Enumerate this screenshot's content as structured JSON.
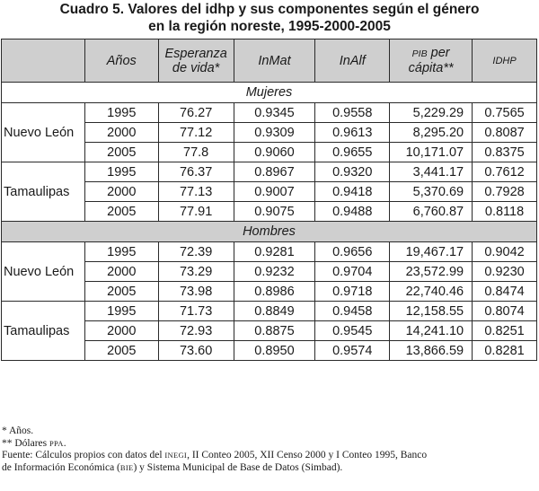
{
  "title": {
    "line1": "Cuadro 5. Valores del idhp y sus componentes según el género",
    "line2": "en la región noreste, 1995-2000-2005"
  },
  "headers": {
    "anios": "Años",
    "esperanza_1": "Esperanza",
    "esperanza_2": "de vida*",
    "inmat": "InMat",
    "inalf": "InAlf",
    "pib_1": "PIB",
    "pib_1b": "per",
    "pib_2": "cápita**",
    "idhp": "IDHP"
  },
  "sections": {
    "mujeres": "Mujeres",
    "hombres": "Hombres"
  },
  "mujeres": {
    "nuevo_leon": {
      "state": "Nuevo León",
      "rows": [
        {
          "year": "1995",
          "esperanza": "76.27",
          "inmat": "0.9345",
          "inalf": "0.9558",
          "pib": "5,229.29",
          "idhp": "0.7565"
        },
        {
          "year": "2000",
          "esperanza": "77.12",
          "inmat": "0.9309",
          "inalf": "0.9613",
          "pib": "8,295.20",
          "idhp": "0.8087"
        },
        {
          "year": "2005",
          "esperanza": "77.8",
          "inmat": "0.9060",
          "inalf": "0.9655",
          "pib": "10,171.07",
          "idhp": "0.8375"
        }
      ]
    },
    "tamaulipas": {
      "state": "Tamaulipas",
      "rows": [
        {
          "year": "1995",
          "esperanza": "76.37",
          "inmat": "0.8967",
          "inalf": "0.9320",
          "pib": "3,441.17",
          "idhp": "0.7612"
        },
        {
          "year": "2000",
          "esperanza": "77.13",
          "inmat": "0.9007",
          "inalf": "0.9418",
          "pib": "5,370.69",
          "idhp": "0.7928"
        },
        {
          "year": "2005",
          "esperanza": "77.91",
          "inmat": "0.9075",
          "inalf": "0.9488",
          "pib": "6,760.87",
          "idhp": "0.8118"
        }
      ]
    }
  },
  "hombres": {
    "nuevo_leon": {
      "state": "Nuevo León",
      "rows": [
        {
          "year": "1995",
          "esperanza": "72.39",
          "inmat": "0.9281",
          "inalf": "0.9656",
          "pib": "19,467.17",
          "idhp": "0.9042"
        },
        {
          "year": "2000",
          "esperanza": "73.29",
          "inmat": "0.9232",
          "inalf": "0.9704",
          "pib": "23,572.99",
          "idhp": "0.9230"
        },
        {
          "year": "2005",
          "esperanza": "73.98",
          "inmat": "0.8986",
          "inalf": "0.9718",
          "pib": "22,740.46",
          "idhp": "0.8474"
        }
      ]
    },
    "tamaulipas": {
      "state": "Tamaulipas",
      "rows": [
        {
          "year": "1995",
          "esperanza": "71.73",
          "inmat": "0.8849",
          "inalf": "0.9458",
          "pib": "12,158.55",
          "idhp": "0.8074"
        },
        {
          "year": "2000",
          "esperanza": "72.93",
          "inmat": "0.8875",
          "inalf": "0.9545",
          "pib": "14,241.10",
          "idhp": "0.8251"
        },
        {
          "year": "2005",
          "esperanza": "73.60",
          "inmat": "0.8950",
          "inalf": "0.9574",
          "pib": "13,866.59",
          "idhp": "0.8281"
        }
      ]
    }
  },
  "notes": {
    "n1": "* Años.",
    "n2_prefix": "** Dólares ",
    "n2_sc": "PPA",
    "n2_suffix": ".",
    "fuente_1": "Fuente: Cálculos propios con datos del ",
    "fuente_inegi": "INEGI",
    "fuente_2": ", II Conteo 2005, XII Censo 2000 y I Conteo 1995, Banco",
    "fuente_3": "de Información Económica (",
    "fuente_bie": "BIE",
    "fuente_4": ") y Sistema Municipal de Base de Datos (Simbad)."
  }
}
